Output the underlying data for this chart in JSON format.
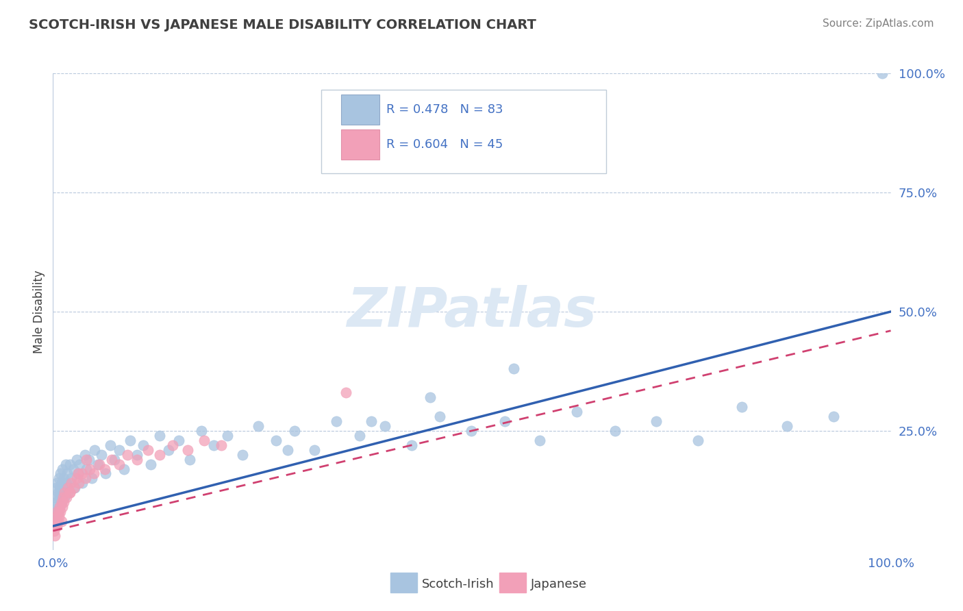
{
  "title": "SCOTCH-IRISH VS JAPANESE MALE DISABILITY CORRELATION CHART",
  "source": "Source: ZipAtlas.com",
  "ylabel": "Male Disability",
  "xlim": [
    0,
    1.0
  ],
  "ylim": [
    0,
    1.0
  ],
  "scotch_irish_R": 0.478,
  "scotch_irish_N": 83,
  "japanese_R": 0.604,
  "japanese_N": 45,
  "scotch_irish_color": "#a8c4e0",
  "japanese_color": "#f2a0b8",
  "scotch_irish_line_color": "#3060b0",
  "japanese_line_color": "#d04070",
  "watermark": "ZIPatlas",
  "watermark_color": "#dce8f4",
  "legend_text_color": "#4472c4",
  "background_color": "#ffffff",
  "grid_color": "#b8c8dc",
  "title_color": "#404040",
  "source_color": "#808080",
  "axis_color": "#4472c4",
  "scotch_irish_x": [
    0.001,
    0.002,
    0.002,
    0.003,
    0.003,
    0.004,
    0.004,
    0.005,
    0.005,
    0.006,
    0.006,
    0.007,
    0.007,
    0.008,
    0.008,
    0.009,
    0.009,
    0.01,
    0.01,
    0.011,
    0.012,
    0.013,
    0.014,
    0.015,
    0.016,
    0.017,
    0.018,
    0.02,
    0.022,
    0.024,
    0.026,
    0.028,
    0.03,
    0.032,
    0.035,
    0.038,
    0.04,
    0.043,
    0.046,
    0.05,
    0.054,
    0.058,
    0.063,
    0.068,
    0.073,
    0.079,
    0.085,
    0.092,
    0.1,
    0.108,
    0.117,
    0.127,
    0.138,
    0.15,
    0.163,
    0.177,
    0.192,
    0.208,
    0.226,
    0.245,
    0.266,
    0.288,
    0.312,
    0.338,
    0.366,
    0.396,
    0.428,
    0.462,
    0.499,
    0.539,
    0.581,
    0.625,
    0.671,
    0.72,
    0.77,
    0.822,
    0.876,
    0.932,
    0.99,
    0.45,
    0.55,
    0.38,
    0.28
  ],
  "scotch_irish_y": [
    0.07,
    0.09,
    0.05,
    0.11,
    0.08,
    0.13,
    0.06,
    0.14,
    0.1,
    0.12,
    0.08,
    0.15,
    0.11,
    0.13,
    0.09,
    0.16,
    0.12,
    0.14,
    0.1,
    0.17,
    0.13,
    0.15,
    0.11,
    0.18,
    0.14,
    0.16,
    0.12,
    0.18,
    0.15,
    0.17,
    0.13,
    0.19,
    0.16,
    0.18,
    0.14,
    0.2,
    0.17,
    0.19,
    0.15,
    0.21,
    0.18,
    0.2,
    0.16,
    0.22,
    0.19,
    0.21,
    0.17,
    0.23,
    0.2,
    0.22,
    0.18,
    0.24,
    0.21,
    0.23,
    0.19,
    0.25,
    0.22,
    0.24,
    0.2,
    0.26,
    0.23,
    0.25,
    0.21,
    0.27,
    0.24,
    0.26,
    0.22,
    0.28,
    0.25,
    0.27,
    0.23,
    0.29,
    0.25,
    0.27,
    0.23,
    0.3,
    0.26,
    0.28,
    1.0,
    0.32,
    0.38,
    0.27,
    0.21
  ],
  "japanese_x": [
    0.001,
    0.002,
    0.003,
    0.003,
    0.004,
    0.005,
    0.005,
    0.006,
    0.007,
    0.007,
    0.008,
    0.009,
    0.01,
    0.011,
    0.012,
    0.013,
    0.014,
    0.016,
    0.018,
    0.02,
    0.022,
    0.025,
    0.028,
    0.031,
    0.035,
    0.039,
    0.044,
    0.049,
    0.055,
    0.062,
    0.07,
    0.079,
    0.089,
    0.1,
    0.113,
    0.127,
    0.143,
    0.161,
    0.18,
    0.201,
    0.01,
    0.02,
    0.03,
    0.04,
    0.35
  ],
  "japanese_y": [
    0.04,
    0.03,
    0.06,
    0.05,
    0.07,
    0.05,
    0.08,
    0.06,
    0.08,
    0.07,
    0.09,
    0.08,
    0.1,
    0.09,
    0.11,
    0.1,
    0.12,
    0.11,
    0.13,
    0.12,
    0.14,
    0.13,
    0.15,
    0.14,
    0.16,
    0.15,
    0.17,
    0.16,
    0.18,
    0.17,
    0.19,
    0.18,
    0.2,
    0.19,
    0.21,
    0.2,
    0.22,
    0.21,
    0.23,
    0.22,
    0.06,
    0.12,
    0.16,
    0.19,
    0.33
  ],
  "line_si_x0": 0.0,
  "line_si_y0": 0.05,
  "line_si_x1": 1.0,
  "line_si_y1": 0.5,
  "line_jp_x0": 0.0,
  "line_jp_y0": 0.04,
  "line_jp_x1": 1.0,
  "line_jp_y1": 0.46
}
